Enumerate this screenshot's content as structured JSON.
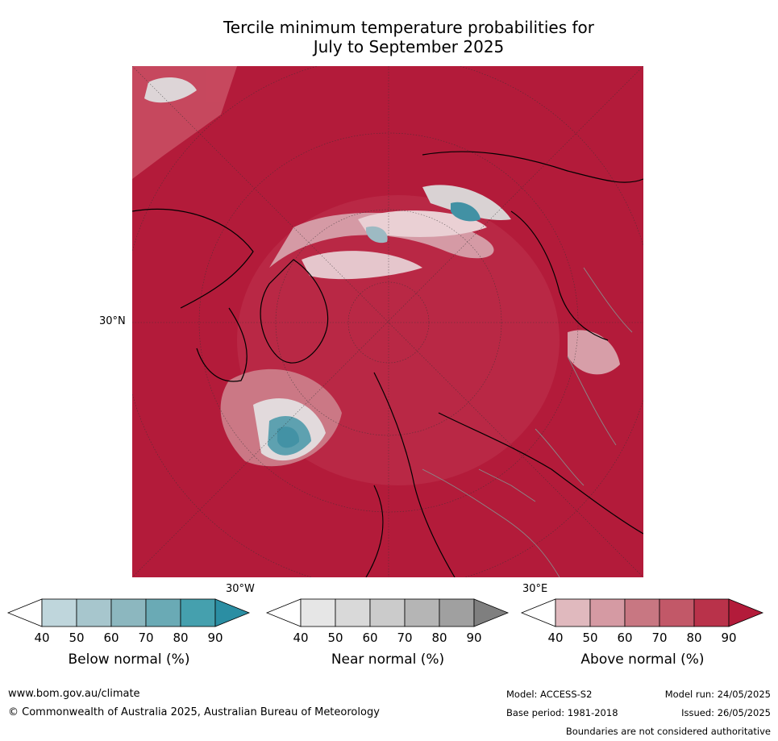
{
  "title": {
    "line1": "Tercile minimum temperature probabilities for",
    "line2": "July to September 2025"
  },
  "map": {
    "projection": "north-polar-stereographic",
    "latitude_label": "30°N",
    "longitude_labels": {
      "west": "30°W",
      "east": "30°E"
    },
    "dominant_category": "Above normal",
    "dominant_color": "#b31b3a",
    "cool_areas": [
      "North Atlantic south of Greenland",
      "North Pacific / Bering region",
      "Arctic Ocean coastline"
    ]
  },
  "colorbars": [
    {
      "label": "Below normal (%)",
      "ticks": [
        "40",
        "50",
        "60",
        "70",
        "80",
        "90"
      ],
      "colors": [
        "#ffffff",
        "#bfd6dc",
        "#a7c6cd",
        "#8cb7bf",
        "#6aaab5",
        "#45a0ae",
        "#2b8ea3"
      ]
    },
    {
      "label": "Near normal (%)",
      "ticks": [
        "40",
        "50",
        "60",
        "70",
        "80",
        "90"
      ],
      "colors": [
        "#ffffff",
        "#e6e6e6",
        "#d9d9d9",
        "#cbcbcb",
        "#b5b5b5",
        "#a0a0a0",
        "#7f7f7f"
      ]
    },
    {
      "label": "Above normal (%)",
      "ticks": [
        "40",
        "50",
        "60",
        "70",
        "80",
        "90"
      ],
      "colors": [
        "#ffffff",
        "#e0b9be",
        "#d59aa3",
        "#c87782",
        "#c25868",
        "#b9324a",
        "#b31b3a"
      ]
    }
  ],
  "footer": {
    "website": "www.bom.gov.au/climate",
    "copyright": "© Commonwealth of Australia 2025, Australian Bureau of Meteorology",
    "model": "Model: ACCESS-S2",
    "model_run": "Model run: 24/05/2025",
    "base_period": "Base period: 1981-2018",
    "issued": "Issued: 26/05/2025",
    "disclaimer": "Boundaries are not considered authoritative"
  }
}
